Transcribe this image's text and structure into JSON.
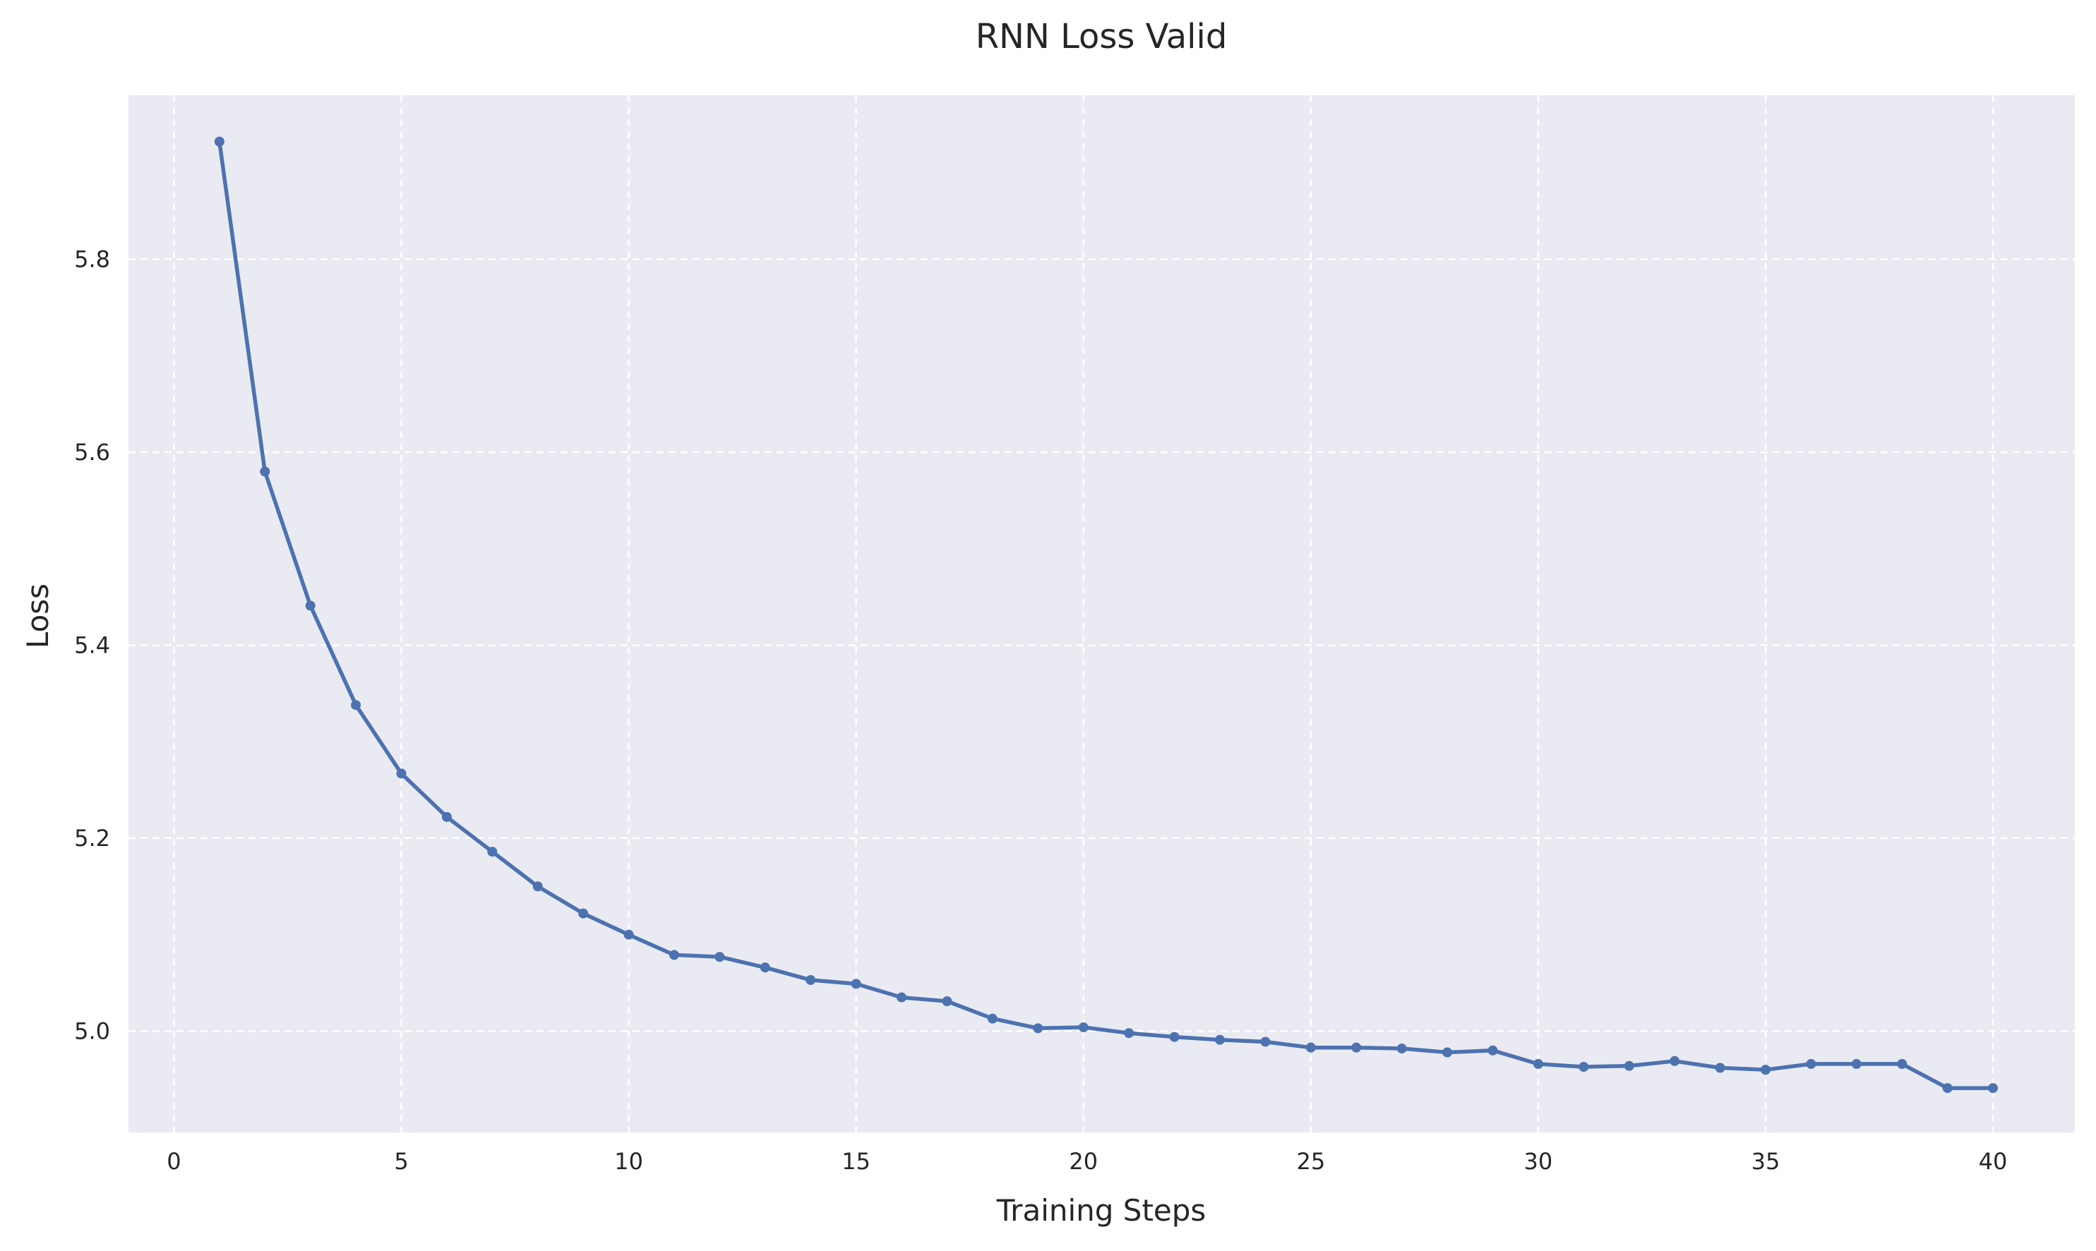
{
  "chart_data": {
    "type": "line",
    "title": "RNN Loss Valid",
    "xlabel": "Training Steps",
    "ylabel": "Loss",
    "xlim": [
      -1,
      41.8
    ],
    "ylim": [
      4.895,
      5.97
    ],
    "xticks": [
      0,
      5,
      10,
      15,
      20,
      25,
      30,
      35,
      40
    ],
    "yticks": [
      5.0,
      5.2,
      5.4,
      5.6,
      5.8
    ],
    "xtick_labels": [
      "0",
      "5",
      "10",
      "15",
      "20",
      "25",
      "30",
      "35",
      "40"
    ],
    "ytick_labels": [
      "5.0",
      "5.2",
      "5.4",
      "5.6",
      "5.8"
    ],
    "grid": true,
    "style": {
      "background": "#eaeaf2",
      "grid_color": "#ffffff",
      "line_color": "#4c72b0"
    },
    "series": [
      {
        "x": [
          1,
          2,
          3,
          4,
          5,
          6,
          7,
          8,
          9,
          10,
          11,
          12,
          13,
          14,
          15,
          16,
          17,
          18,
          19,
          20,
          21,
          22,
          23,
          24,
          25,
          26,
          27,
          28,
          29,
          30,
          31,
          32,
          33,
          34,
          35,
          36,
          37,
          38,
          39,
          40
        ],
        "values": [
          5.922,
          5.58,
          5.441,
          5.338,
          5.267,
          5.222,
          5.186,
          5.15,
          5.122,
          5.1,
          5.079,
          5.077,
          5.066,
          5.053,
          5.049,
          5.035,
          5.031,
          5.013,
          5.003,
          5.004,
          4.998,
          4.994,
          4.991,
          4.989,
          4.983,
          4.983,
          4.982,
          4.978,
          4.98,
          4.966,
          4.963,
          4.964,
          4.969,
          4.962,
          4.96,
          4.966,
          4.966,
          4.966,
          4.941,
          4.941
        ]
      }
    ]
  }
}
